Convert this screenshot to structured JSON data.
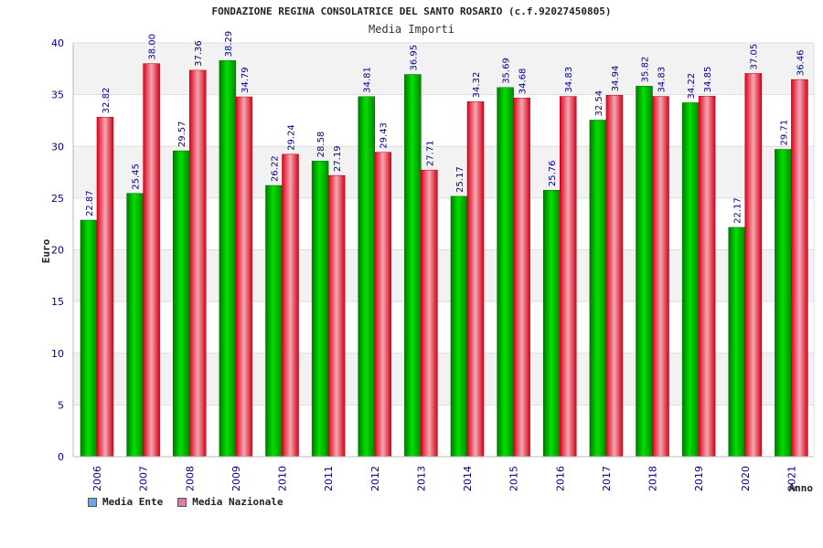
{
  "chart_data": {
    "type": "bar",
    "title": "FONDAZIONE REGINA CONSOLATRICE DEL SANTO ROSARIO (c.f.92027450805)",
    "subtitle": "Media Importi",
    "xlabel": "Anno",
    "ylabel": "Euro",
    "ylim": [
      0,
      40
    ],
    "yticks": [
      0,
      5,
      10,
      15,
      20,
      25,
      30,
      35,
      40
    ],
    "grid": true,
    "legend_position": "bottom-left",
    "categories": [
      "2006",
      "2007",
      "2008",
      "2009",
      "2010",
      "2011",
      "2012",
      "2013",
      "2014",
      "2015",
      "2016",
      "2017",
      "2018",
      "2019",
      "2020",
      "2021"
    ],
    "series": [
      {
        "name": "Media Ente",
        "color": "#00c000",
        "legend_color": "#6aa6e8",
        "values": [
          22.87,
          25.45,
          29.57,
          38.29,
          26.22,
          28.58,
          34.81,
          36.95,
          25.17,
          35.69,
          25.76,
          32.54,
          35.82,
          34.22,
          22.17,
          29.71
        ],
        "labels": [
          "22.87",
          "25.45",
          "29.57",
          "38.29",
          "26.22",
          "28.58",
          "34.81",
          "36.95",
          "25.17",
          "35.69",
          "25.76",
          "32.54",
          "35.82",
          "34.22",
          "22.17",
          "29.71"
        ]
      },
      {
        "name": "Media Nazionale",
        "color": "#e8001c",
        "legend_color": "#e07aa8",
        "values": [
          32.82,
          38.0,
          37.36,
          34.79,
          29.24,
          27.19,
          29.43,
          27.71,
          34.32,
          34.68,
          34.83,
          34.94,
          34.83,
          34.85,
          37.05,
          36.46
        ],
        "labels": [
          "32.82",
          "38.00",
          "37.36",
          "34.79",
          "29.24",
          "27.19",
          "29.43",
          "27.71",
          "34.32",
          "34.68",
          "34.83",
          "34.94",
          "34.83",
          "34.85",
          "37.05",
          "36.46"
        ]
      }
    ]
  }
}
